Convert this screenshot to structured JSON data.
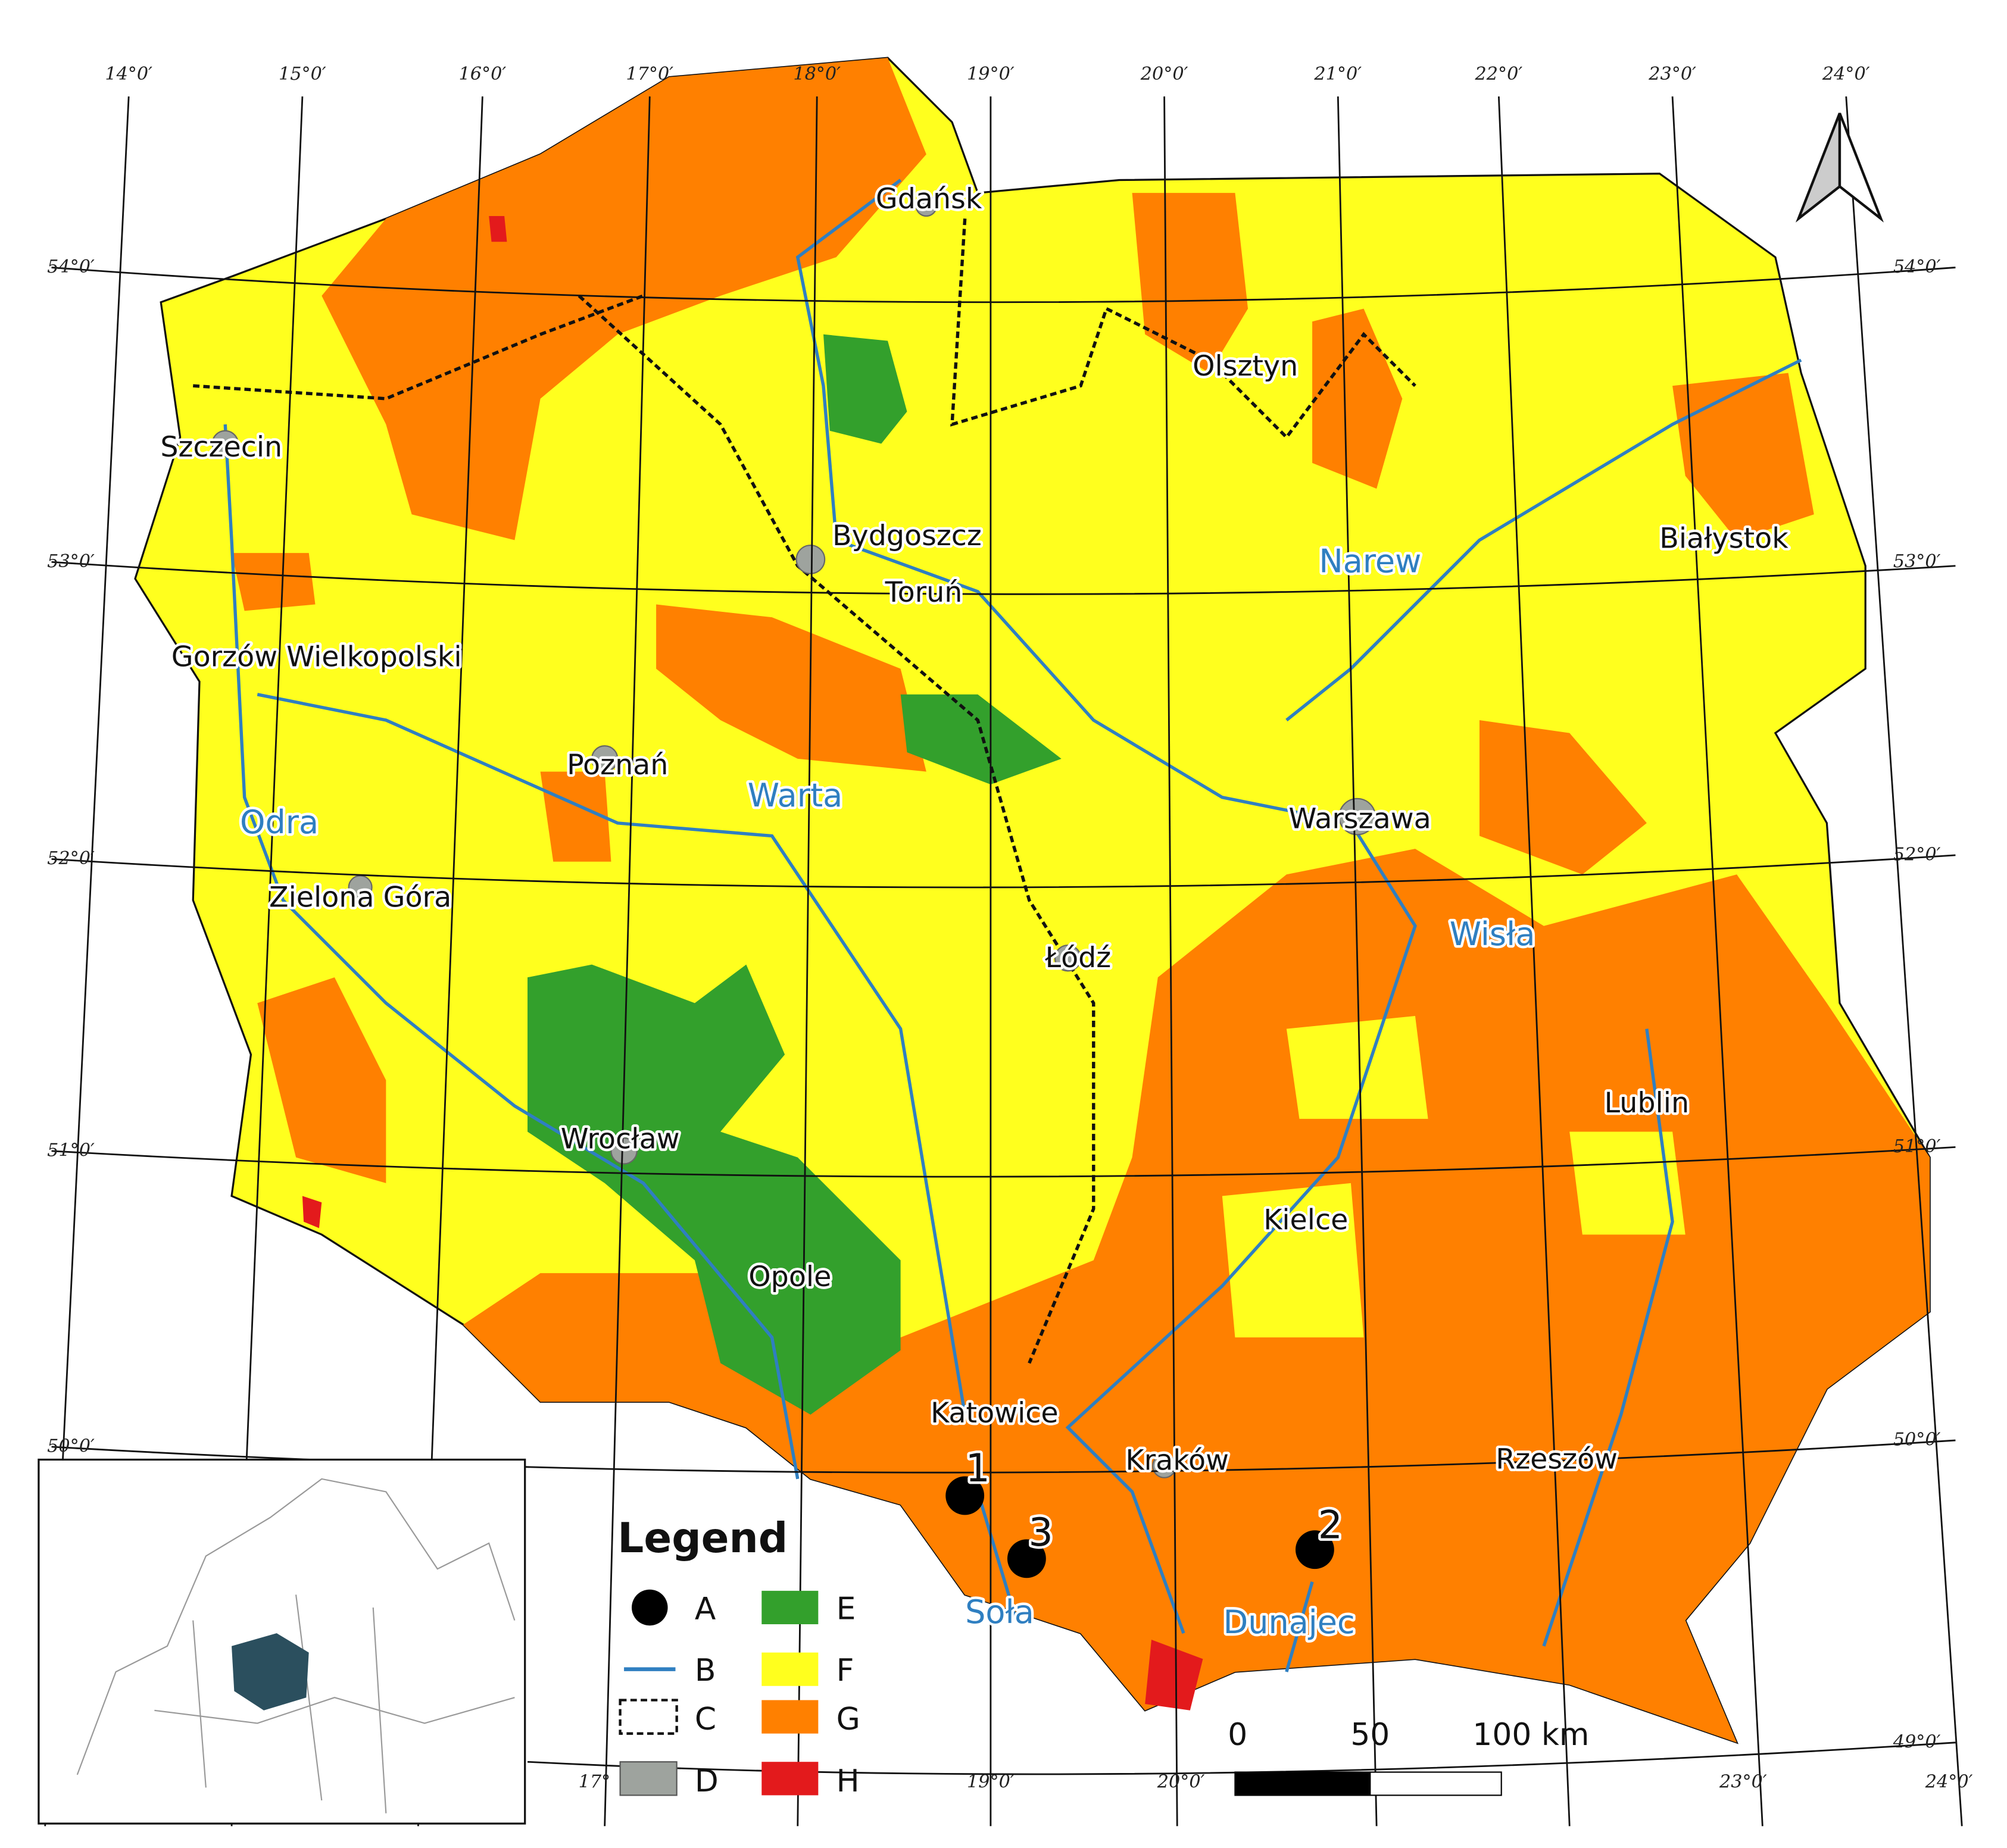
{
  "map": {
    "lon_labels_top": [
      "14°0′",
      "15°0′",
      "16°0′",
      "17°0′",
      "18°0′",
      "19°0′",
      "20°0′",
      "21°0′",
      "22°0′",
      "23°0′",
      "24°0′"
    ],
    "lon_labels_bottom": [
      "17°",
      "19°0′",
      "20°0′",
      "23°0′",
      "24°0′"
    ],
    "lat_labels_left": [
      "54°0′",
      "53°0′",
      "52°0′",
      "51°0′",
      "50°0′"
    ],
    "lat_labels_right": [
      "54°0′",
      "53°0′",
      "52°0′",
      "51°0′",
      "50°0′",
      "49°0′"
    ],
    "cities": [
      "Gdańsk",
      "Olsztyn",
      "Szczecin",
      "Bydgoszcz",
      "Toruń",
      "Białystok",
      "Gorzów Wielkopolski",
      "Poznań",
      "Warszawa",
      "Zielona Góra",
      "Łódź",
      "Wrocław",
      "Lublin",
      "Kielce",
      "Opole",
      "Katowice",
      "Kraków",
      "Rzeszów"
    ],
    "rivers": [
      "Narew",
      "Warta",
      "Odra",
      "Wisła",
      "Soła",
      "Dunajec"
    ],
    "sites": [
      "1",
      "2",
      "3"
    ],
    "legend": {
      "title": "Legend",
      "items": [
        "A",
        "B",
        "C",
        "D",
        "E",
        "F",
        "G",
        "H"
      ]
    },
    "scale_bar": [
      "0",
      "50",
      "100 km"
    ]
  }
}
